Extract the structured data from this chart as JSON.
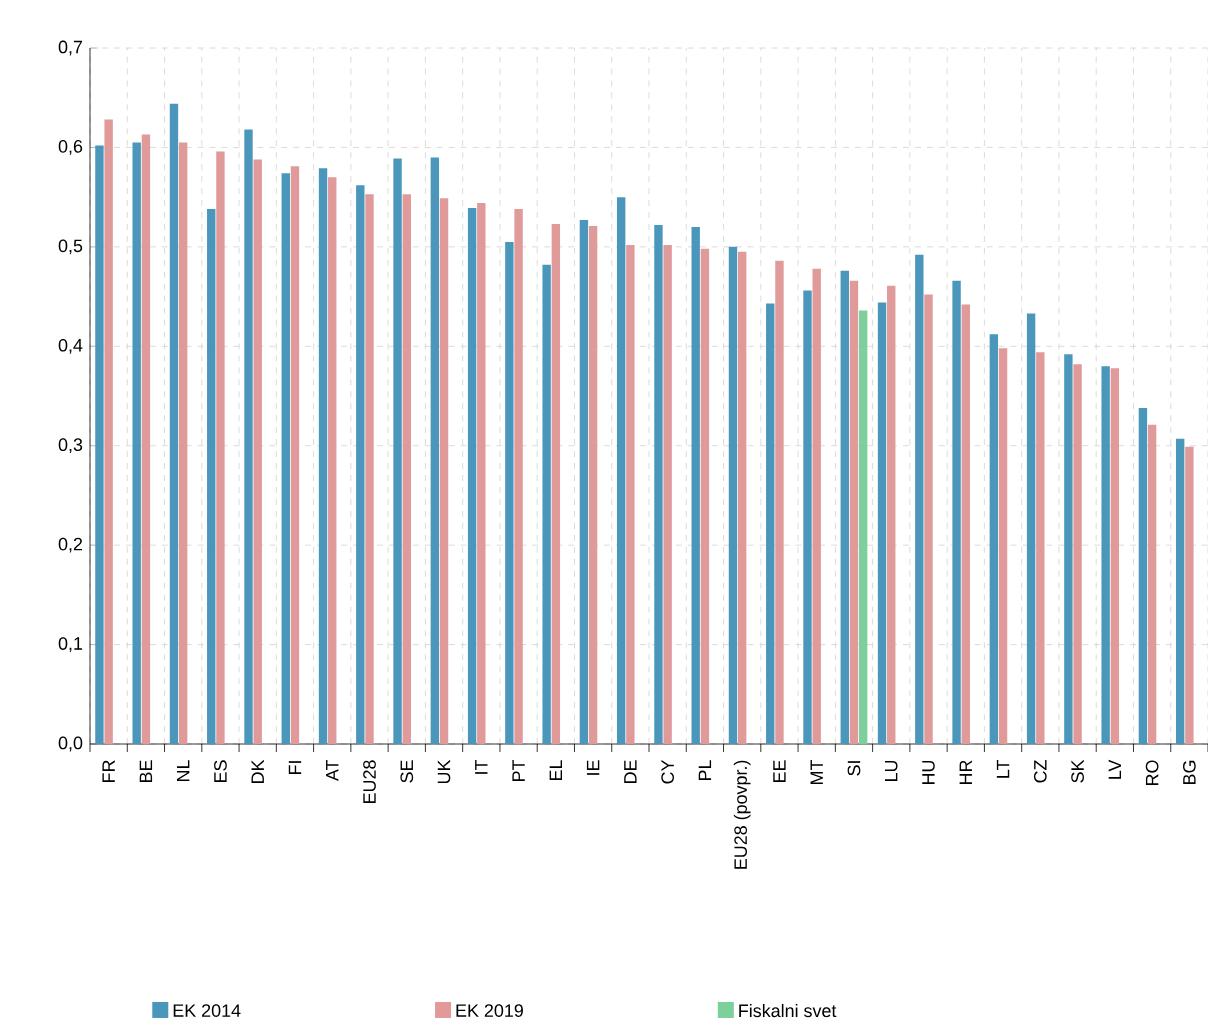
{
  "chart_data": {
    "type": "bar",
    "categories": [
      "FR",
      "BE",
      "NL",
      "ES",
      "DK",
      "FI",
      "AT",
      "EU28",
      "SE",
      "UK",
      "IT",
      "PT",
      "EL",
      "IE",
      "DE",
      "CY",
      "PL",
      "EU28 (povpr.)",
      "EE",
      "MT",
      "SI",
      "LU",
      "HU",
      "HR",
      "LT",
      "CZ",
      "SK",
      "LV",
      "RO",
      "BG"
    ],
    "series": [
      {
        "name": "EK 2014",
        "color": "#4a97bb",
        "values": [
          0.602,
          0.605,
          0.644,
          0.538,
          0.618,
          0.574,
          0.579,
          0.562,
          0.589,
          0.59,
          0.539,
          0.505,
          0.482,
          0.527,
          0.55,
          0.522,
          0.52,
          0.5,
          0.443,
          0.456,
          0.476,
          0.444,
          0.492,
          0.466,
          0.412,
          0.433,
          0.392,
          0.38,
          0.338,
          0.307
        ]
      },
      {
        "name": "EK 2019",
        "color": "#e09a9a",
        "values": [
          0.628,
          0.613,
          0.605,
          0.596,
          0.588,
          0.581,
          0.57,
          0.553,
          0.553,
          0.549,
          0.544,
          0.538,
          0.523,
          0.521,
          0.502,
          0.502,
          0.498,
          0.495,
          0.486,
          0.478,
          0.466,
          0.461,
          0.452,
          0.442,
          0.398,
          0.394,
          0.382,
          0.378,
          0.321,
          0.299
        ]
      },
      {
        "name": "Fiskalni svet",
        "color": "#7dcf9c",
        "values": [
          null,
          null,
          null,
          null,
          null,
          null,
          null,
          null,
          null,
          null,
          null,
          null,
          null,
          null,
          null,
          null,
          null,
          null,
          null,
          null,
          0.436,
          null,
          null,
          null,
          null,
          null,
          null,
          null,
          null,
          null
        ]
      }
    ],
    "ylim": [
      0,
      0.7
    ],
    "yticks": [
      {
        "value": 0,
        "label": "0,0"
      },
      {
        "value": 0.1,
        "label": "0,1"
      },
      {
        "value": 0.2,
        "label": "0,2"
      },
      {
        "value": 0.3,
        "label": "0,3"
      },
      {
        "value": 0.4,
        "label": "0,4"
      },
      {
        "value": 0.5,
        "label": "0,5"
      },
      {
        "value": 0.6,
        "label": "0,6"
      },
      {
        "value": 0.7,
        "label": "0,7"
      }
    ],
    "grid": true,
    "legend": "bottom"
  }
}
